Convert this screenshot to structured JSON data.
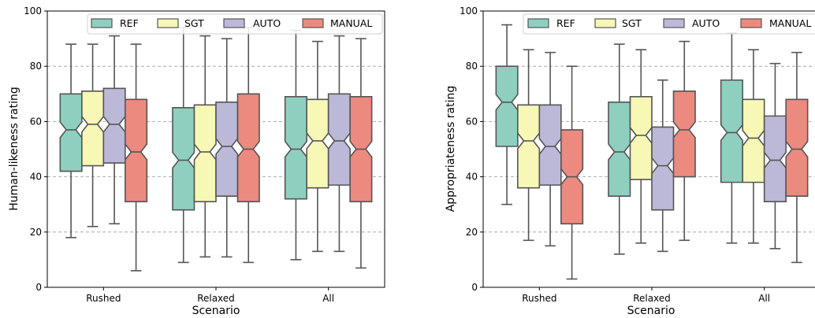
{
  "chart_data": [
    {
      "type": "box",
      "title": "",
      "xlabel": "Scenario",
      "ylabel": "Human-likeness rating",
      "ylim": [
        0,
        100
      ],
      "yticks": [
        0,
        20,
        40,
        60,
        80,
        100
      ],
      "grid": "horizontal dashed",
      "legend_position": "top",
      "notched": true,
      "categories": [
        "Rushed",
        "Relaxed",
        "All"
      ],
      "series": [
        {
          "name": "REF",
          "color": "#8fcfc0",
          "boxes": [
            {
              "whisker_low": 18,
              "q1": 42,
              "median": 57,
              "q3": 70,
              "whisker_high": 88
            },
            {
              "whisker_low": 9,
              "q1": 28,
              "median": 46,
              "q3": 65,
              "whisker_high": 94
            },
            {
              "whisker_low": 10,
              "q1": 32,
              "median": 50,
              "q3": 69,
              "whisker_high": 93
            }
          ]
        },
        {
          "name": "SGT",
          "color": "#f7f7b6",
          "boxes": [
            {
              "whisker_low": 22,
              "q1": 44,
              "median": 59,
              "q3": 71,
              "whisker_high": 88
            },
            {
              "whisker_low": 11,
              "q1": 31,
              "median": 49,
              "q3": 66,
              "whisker_high": 91
            },
            {
              "whisker_low": 13,
              "q1": 36,
              "median": 53,
              "q3": 68,
              "whisker_high": 89
            }
          ]
        },
        {
          "name": "AUTO",
          "color": "#bcb8d8",
          "boxes": [
            {
              "whisker_low": 23,
              "q1": 45,
              "median": 59,
              "q3": 72,
              "whisker_high": 91
            },
            {
              "whisker_low": 11,
              "q1": 33,
              "median": 51,
              "q3": 67,
              "whisker_high": 90
            },
            {
              "whisker_low": 13,
              "q1": 37,
              "median": 53,
              "q3": 70,
              "whisker_high": 91
            }
          ]
        },
        {
          "name": "MANUAL",
          "color": "#ec8a80",
          "boxes": [
            {
              "whisker_low": 6,
              "q1": 31,
              "median": 49,
              "q3": 68,
              "whisker_high": 88
            },
            {
              "whisker_low": 9,
              "q1": 31,
              "median": 50,
              "q3": 70,
              "whisker_high": 94
            },
            {
              "whisker_low": 7,
              "q1": 31,
              "median": 50,
              "q3": 69,
              "whisker_high": 90
            }
          ]
        }
      ]
    },
    {
      "type": "box",
      "title": "",
      "xlabel": "Scenario",
      "ylabel": "Appropriateness rating",
      "ylim": [
        0,
        100
      ],
      "yticks": [
        0,
        20,
        40,
        60,
        80,
        100
      ],
      "grid": "horizontal dashed",
      "legend_position": "top",
      "notched": true,
      "categories": [
        "Rushed",
        "Relaxed",
        "All"
      ],
      "series": [
        {
          "name": "REF",
          "color": "#8fcfc0",
          "boxes": [
            {
              "whisker_low": 30,
              "q1": 51,
              "median": 67,
              "q3": 80,
              "whisker_high": 95
            },
            {
              "whisker_low": 12,
              "q1": 33,
              "median": 49,
              "q3": 67,
              "whisker_high": 88
            },
            {
              "whisker_low": 16,
              "q1": 38,
              "median": 56,
              "q3": 75,
              "whisker_high": 92
            }
          ]
        },
        {
          "name": "SGT",
          "color": "#f7f7b6",
          "boxes": [
            {
              "whisker_low": 17,
              "q1": 36,
              "median": 53,
              "q3": 66,
              "whisker_high": 86
            },
            {
              "whisker_low": 16,
              "q1": 39,
              "median": 55,
              "q3": 69,
              "whisker_high": 86
            },
            {
              "whisker_low": 16,
              "q1": 38,
              "median": 54,
              "q3": 68,
              "whisker_high": 86
            }
          ]
        },
        {
          "name": "AUTO",
          "color": "#bcb8d8",
          "boxes": [
            {
              "whisker_low": 15,
              "q1": 37,
              "median": 51,
              "q3": 66,
              "whisker_high": 85
            },
            {
              "whisker_low": 13,
              "q1": 28,
              "median": 44,
              "q3": 58,
              "whisker_high": 75
            },
            {
              "whisker_low": 14,
              "q1": 31,
              "median": 46,
              "q3": 62,
              "whisker_high": 81
            }
          ]
        },
        {
          "name": "MANUAL",
          "color": "#ec8a80",
          "boxes": [
            {
              "whisker_low": 3,
              "q1": 23,
              "median": 40,
              "q3": 57,
              "whisker_high": 80
            },
            {
              "whisker_low": 17,
              "q1": 40,
              "median": 57,
              "q3": 71,
              "whisker_high": 89
            },
            {
              "whisker_low": 9,
              "q1": 33,
              "median": 50,
              "q3": 68,
              "whisker_high": 85
            }
          ]
        }
      ]
    }
  ]
}
